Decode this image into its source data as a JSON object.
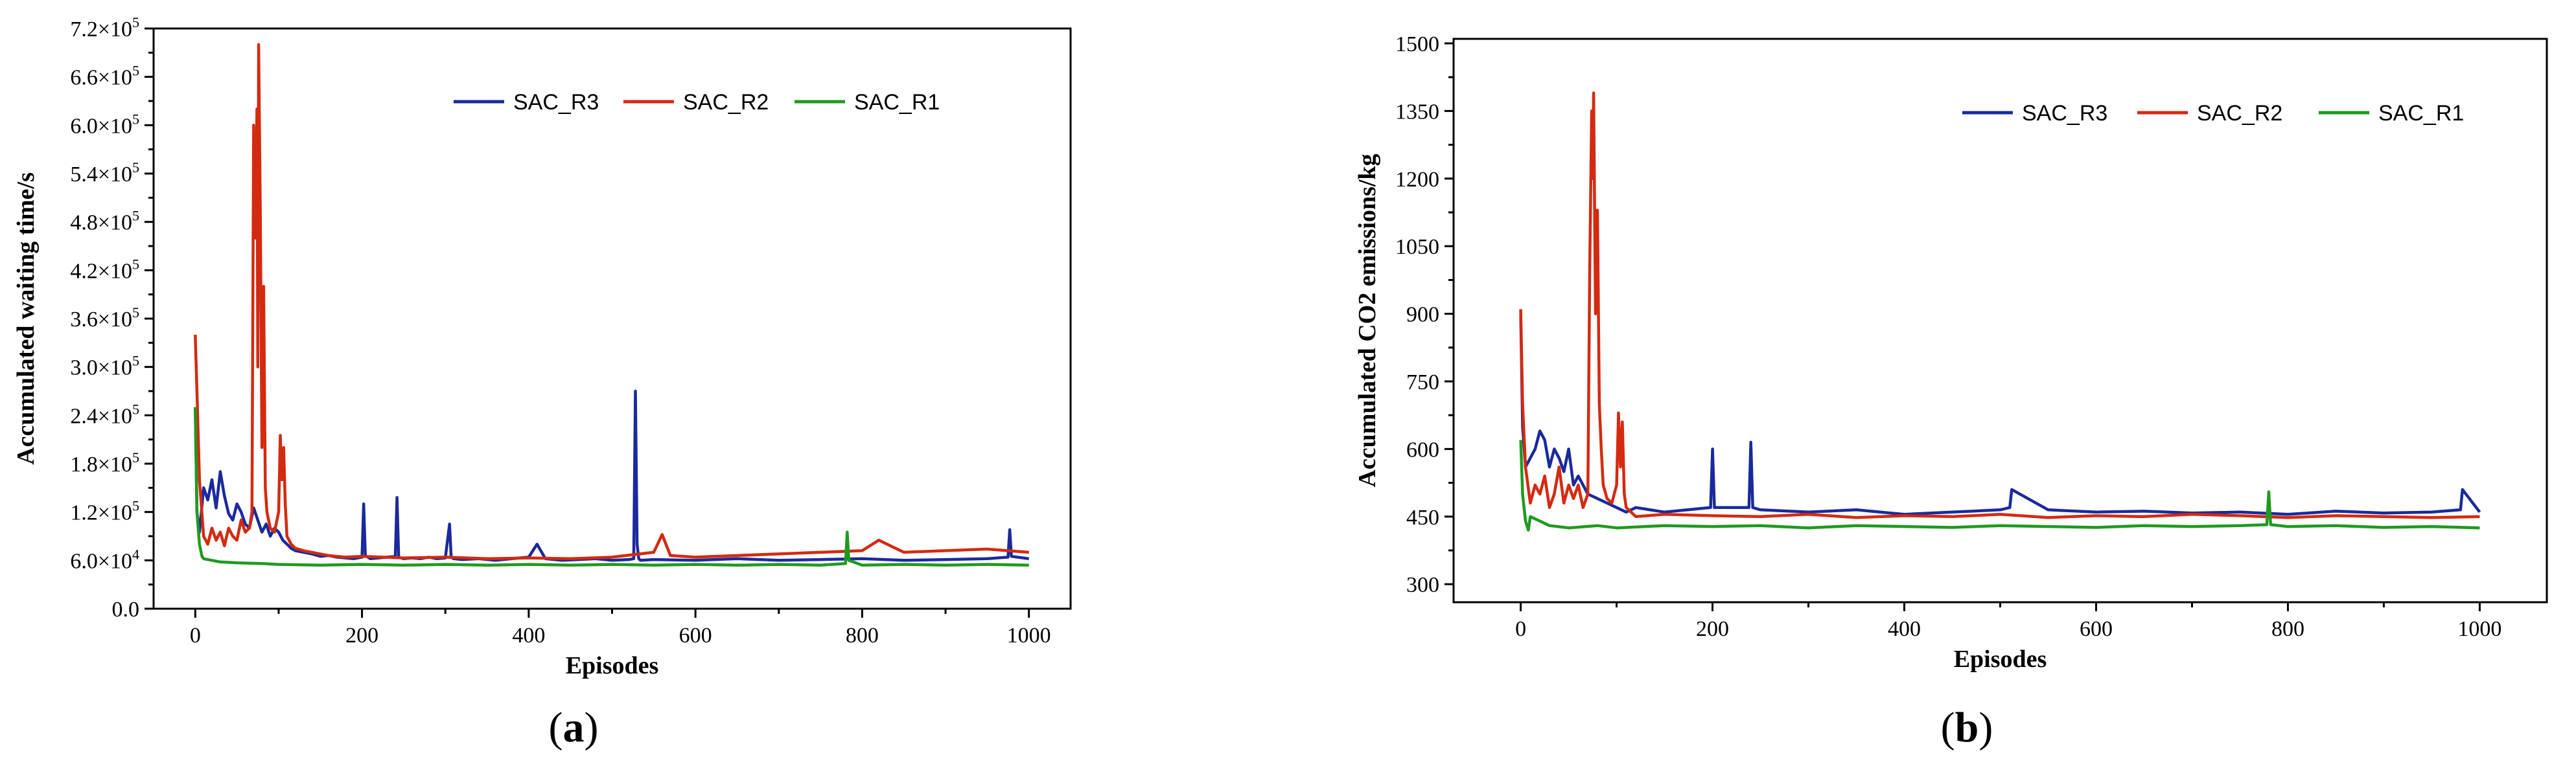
{
  "panels": {
    "a": {
      "label_open": "(",
      "label_letter": "a",
      "label_close": ")"
    },
    "b": {
      "label_open": "(",
      "label_letter": "b",
      "label_close": ")"
    }
  },
  "legend": {
    "series_names": [
      "SAC_R3",
      "SAC_R2",
      "SAC_R1"
    ],
    "colors": [
      "#1a2a9c",
      "#d42a10",
      "#1f9a1f"
    ]
  },
  "chart_data": [
    {
      "type": "line",
      "title": "",
      "xlabel": "Episodes",
      "ylabel": "Accumulated waiting time/s",
      "xlim": [
        -50,
        1050
      ],
      "ylim": [
        0,
        720000
      ],
      "x_ticks": [
        0,
        200,
        400,
        600,
        800,
        1000
      ],
      "y_ticks": [
        0,
        60000,
        120000,
        180000,
        240000,
        300000,
        360000,
        420000,
        480000,
        540000,
        600000,
        660000,
        720000
      ],
      "y_tick_labels": [
        {
          "mant": "0.0",
          "exp": ""
        },
        {
          "mant": "6.0×10",
          "exp": "4"
        },
        {
          "mant": "1.2×10",
          "exp": "5"
        },
        {
          "mant": "1.8×10",
          "exp": "5"
        },
        {
          "mant": "2.4×10",
          "exp": "5"
        },
        {
          "mant": "3.0×10",
          "exp": "5"
        },
        {
          "mant": "3.6×10",
          "exp": "5"
        },
        {
          "mant": "4.2×10",
          "exp": "5"
        },
        {
          "mant": "4.8×10",
          "exp": "5"
        },
        {
          "mant": "5.4×10",
          "exp": "5"
        },
        {
          "mant": "6.0×10",
          "exp": "5"
        },
        {
          "mant": "6.6×10",
          "exp": "5"
        },
        {
          "mant": "7.2×10",
          "exp": "5"
        }
      ],
      "grid": false,
      "legend_position": "top-right",
      "series": [
        {
          "name": "SAC_R3",
          "color": "#1a2a9c",
          "x": [
            0,
            2,
            5,
            10,
            15,
            20,
            25,
            30,
            35,
            40,
            45,
            50,
            55,
            60,
            65,
            70,
            75,
            80,
            85,
            90,
            95,
            100,
            105,
            110,
            115,
            120,
            130,
            140,
            150,
            160,
            170,
            180,
            190,
            200,
            202,
            204,
            210,
            220,
            230,
            240,
            242,
            244,
            250,
            260,
            270,
            280,
            290,
            300,
            305,
            307,
            310,
            320,
            340,
            360,
            380,
            400,
            410,
            420,
            440,
            460,
            480,
            500,
            520,
            526,
            528,
            530,
            532,
            534,
            550,
            600,
            650,
            700,
            750,
            800,
            850,
            900,
            950,
            975,
            977,
            979,
            1000
          ],
          "y": [
            250000,
            120000,
            95000,
            150000,
            135000,
            160000,
            125000,
            170000,
            140000,
            118000,
            110000,
            130000,
            120000,
            105000,
            100000,
            125000,
            110000,
            95000,
            105000,
            90000,
            100000,
            95000,
            85000,
            80000,
            75000,
            72000,
            70000,
            68000,
            65000,
            66000,
            64000,
            63000,
            62000,
            64000,
            130000,
            66000,
            62000,
            63000,
            64000,
            65000,
            138000,
            64000,
            62000,
            63000,
            62000,
            64000,
            62000,
            63000,
            105000,
            64000,
            62000,
            61000,
            62000,
            60000,
            62000,
            64000,
            80000,
            62000,
            60000,
            61000,
            62000,
            60000,
            61000,
            62000,
            270000,
            80000,
            62000,
            60000,
            61000,
            60000,
            62000,
            60000,
            61000,
            62000,
            60000,
            61000,
            62000,
            64000,
            98000,
            65000,
            62000
          ]
        },
        {
          "name": "SAC_R2",
          "color": "#d42a10",
          "x": [
            0,
            2,
            5,
            10,
            15,
            20,
            25,
            30,
            35,
            40,
            45,
            50,
            55,
            60,
            65,
            68,
            70,
            72,
            74,
            75,
            76,
            78,
            80,
            82,
            84,
            86,
            88,
            90,
            95,
            100,
            102,
            104,
            106,
            108,
            110,
            115,
            120,
            130,
            140,
            150,
            160,
            180,
            200,
            250,
            300,
            350,
            400,
            450,
            500,
            550,
            560,
            570,
            600,
            650,
            700,
            750,
            800,
            820,
            850,
            900,
            950,
            1000
          ],
          "y": [
            340000,
            270000,
            160000,
            90000,
            80000,
            100000,
            85000,
            95000,
            78000,
            100000,
            90000,
            85000,
            110000,
            95000,
            100000,
            120000,
            600000,
            460000,
            620000,
            300000,
            700000,
            490000,
            200000,
            400000,
            150000,
            120000,
            110000,
            100000,
            95000,
            120000,
            215000,
            160000,
            200000,
            130000,
            90000,
            80000,
            75000,
            72000,
            70000,
            68000,
            66000,
            64000,
            65000,
            63000,
            64000,
            62000,
            63000,
            62000,
            64000,
            70000,
            92000,
            66000,
            64000,
            66000,
            68000,
            70000,
            72000,
            85000,
            70000,
            72000,
            74000,
            70000
          ]
        },
        {
          "name": "SAC_R1",
          "color": "#1f9a1f",
          "x": [
            0,
            2,
            5,
            8,
            10,
            20,
            30,
            50,
            80,
            100,
            150,
            200,
            250,
            300,
            350,
            400,
            450,
            500,
            550,
            600,
            650,
            700,
            750,
            780,
            782,
            784,
            800,
            850,
            900,
            950,
            1000
          ],
          "y": [
            250000,
            120000,
            80000,
            65000,
            62000,
            60000,
            58000,
            57000,
            56000,
            55000,
            54000,
            55000,
            54000,
            55000,
            54000,
            55000,
            54000,
            55000,
            54000,
            55000,
            54000,
            55000,
            54000,
            56000,
            95000,
            60000,
            54000,
            55000,
            54000,
            55000,
            54000
          ]
        }
      ]
    },
    {
      "type": "line",
      "title": "",
      "xlabel": "Episodes",
      "ylabel": "Accumulated CO2 emissions/kg",
      "xlim": [
        -70,
        1070
      ],
      "ylim": [
        260,
        1510
      ],
      "x_ticks": [
        0,
        200,
        400,
        600,
        800,
        1000
      ],
      "y_ticks": [
        300,
        450,
        600,
        750,
        900,
        1050,
        1200,
        1350,
        1500
      ],
      "y_tick_labels": [
        {
          "mant": "300",
          "exp": ""
        },
        {
          "mant": "450",
          "exp": ""
        },
        {
          "mant": "600",
          "exp": ""
        },
        {
          "mant": "750",
          "exp": ""
        },
        {
          "mant": "900",
          "exp": ""
        },
        {
          "mant": "1050",
          "exp": ""
        },
        {
          "mant": "1200",
          "exp": ""
        },
        {
          "mant": "1350",
          "exp": ""
        },
        {
          "mant": "1500",
          "exp": ""
        }
      ],
      "grid": false,
      "legend_position": "top-right",
      "series": [
        {
          "name": "SAC_R3",
          "color": "#1a2a9c",
          "x": [
            0,
            2,
            5,
            10,
            15,
            20,
            25,
            30,
            35,
            40,
            45,
            50,
            55,
            60,
            70,
            80,
            90,
            100,
            110,
            120,
            150,
            198,
            200,
            202,
            238,
            240,
            242,
            250,
            300,
            350,
            400,
            450,
            500,
            510,
            512,
            550,
            600,
            650,
            700,
            750,
            800,
            850,
            900,
            950,
            980,
            982,
            1000
          ],
          "y": [
            900,
            650,
            560,
            580,
            600,
            640,
            620,
            560,
            600,
            580,
            550,
            600,
            520,
            540,
            500,
            490,
            480,
            470,
            460,
            470,
            460,
            470,
            600,
            470,
            470,
            615,
            470,
            465,
            460,
            465,
            455,
            460,
            465,
            470,
            510,
            465,
            460,
            462,
            458,
            460,
            455,
            462,
            458,
            460,
            465,
            510,
            460
          ]
        },
        {
          "name": "SAC_R2",
          "color": "#d42a10",
          "x": [
            0,
            2,
            5,
            10,
            15,
            20,
            25,
            30,
            35,
            40,
            45,
            50,
            55,
            60,
            65,
            70,
            72,
            74,
            75,
            76,
            78,
            80,
            82,
            84,
            86,
            90,
            95,
            100,
            102,
            104,
            106,
            108,
            110,
            115,
            120,
            150,
            200,
            250,
            300,
            350,
            400,
            450,
            500,
            550,
            600,
            650,
            700,
            750,
            800,
            850,
            900,
            950,
            1000
          ],
          "y": [
            910,
            700,
            560,
            480,
            520,
            500,
            540,
            470,
            500,
            560,
            480,
            520,
            490,
            520,
            470,
            500,
            1000,
            1350,
            1200,
            1390,
            900,
            1130,
            700,
            600,
            520,
            490,
            480,
            520,
            680,
            560,
            660,
            500,
            470,
            460,
            450,
            455,
            452,
            450,
            455,
            448,
            452,
            450,
            455,
            448,
            452,
            450,
            455,
            452,
            448,
            452,
            450,
            448,
            450
          ]
        },
        {
          "name": "SAC_R1",
          "color": "#1f9a1f",
          "x": [
            0,
            2,
            5,
            8,
            10,
            20,
            30,
            50,
            80,
            100,
            150,
            200,
            250,
            300,
            350,
            400,
            450,
            500,
            550,
            600,
            650,
            700,
            750,
            778,
            780,
            782,
            800,
            850,
            900,
            950,
            1000
          ],
          "y": [
            620,
            500,
            440,
            420,
            450,
            440,
            430,
            425,
            430,
            425,
            430,
            428,
            430,
            425,
            430,
            428,
            426,
            430,
            428,
            426,
            430,
            428,
            430,
            432,
            505,
            432,
            428,
            430,
            426,
            428,
            425
          ]
        }
      ]
    }
  ]
}
